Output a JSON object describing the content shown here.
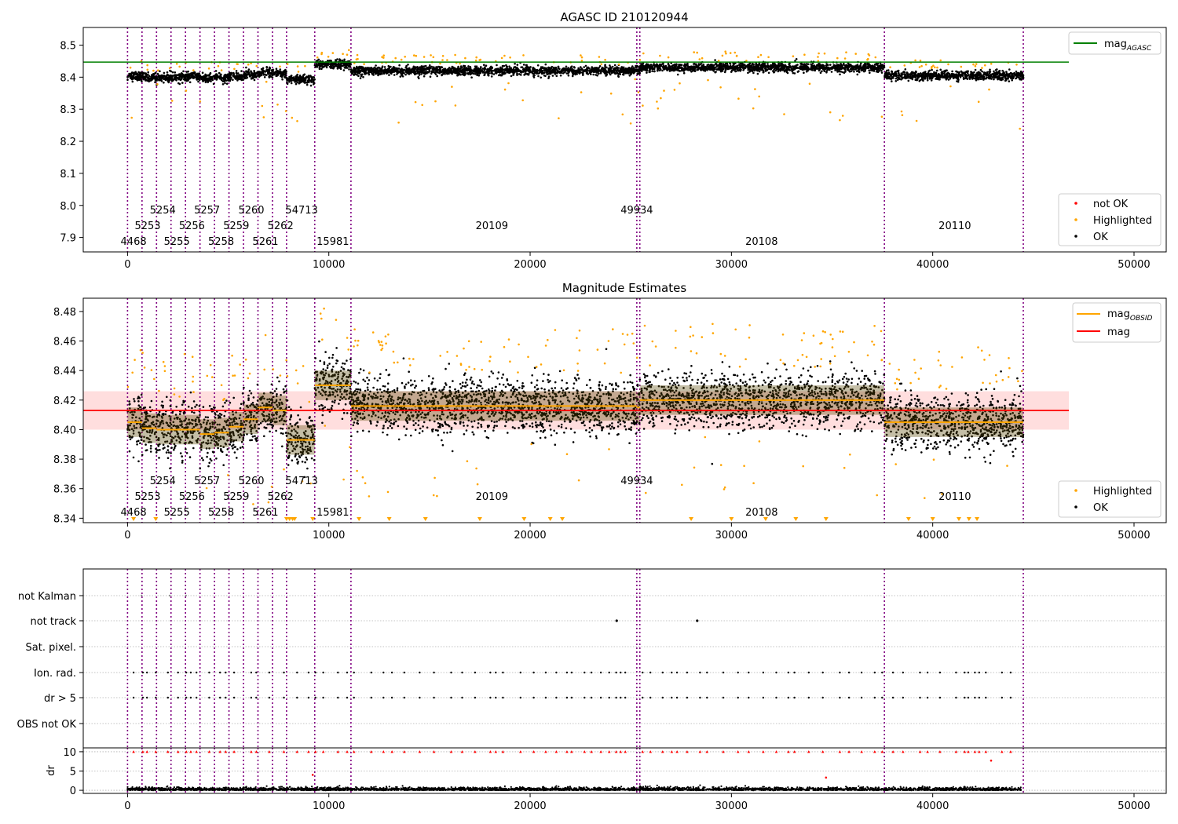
{
  "figure": {
    "colors": {
      "ok": "#000000",
      "highlighted": "#ffa500",
      "not_ok": "#ff0000",
      "obs_line": "#800080",
      "agasc_line": "#008000",
      "mag_line": "#ff0000",
      "mag_band": "#ffcccc",
      "obsid_line": "#ffa500"
    }
  },
  "chart_data": [
    {
      "type": "scatter",
      "title": "AGASC ID 210120944",
      "xlim": [
        -2200,
        51600
      ],
      "ylim": [
        7.855,
        8.555
      ],
      "x_ticks": [
        0,
        10000,
        20000,
        30000,
        40000,
        50000
      ],
      "y_ticks": [
        7.9,
        8.0,
        8.1,
        8.2,
        8.3,
        8.4,
        8.5
      ],
      "hline": {
        "name": "mag_AGASC",
        "value": 8.447,
        "color": "#008000"
      },
      "legend_top": {
        "placement": "top-right",
        "entries": [
          "mag_AGASC"
        ]
      },
      "legend_bottom": {
        "placement": "bottom-right",
        "entries": [
          "not OK",
          "Highlighted",
          "OK"
        ]
      },
      "grid": false
    },
    {
      "type": "scatter",
      "title": "Magnitude Estimates",
      "xlim": [
        -2200,
        51600
      ],
      "ylim": [
        8.337,
        8.489
      ],
      "x_ticks": [
        0,
        10000,
        20000,
        30000,
        40000,
        50000
      ],
      "y_ticks": [
        8.34,
        8.36,
        8.38,
        8.4,
        8.42,
        8.44,
        8.46,
        8.48
      ],
      "mag": {
        "value": 8.413,
        "band": [
          8.4,
          8.426
        ],
        "color": "#ff0000"
      },
      "obsid_mags": [
        {
          "x0": 0,
          "x1": 720,
          "mag": 8.405
        },
        {
          "x0": 720,
          "x1": 1440,
          "mag": 8.401
        },
        {
          "x0": 1440,
          "x1": 2160,
          "mag": 8.4
        },
        {
          "x0": 2160,
          "x1": 2880,
          "mag": 8.4
        },
        {
          "x0": 2880,
          "x1": 3600,
          "mag": 8.4
        },
        {
          "x0": 3600,
          "x1": 4320,
          "mag": 8.397
        },
        {
          "x0": 4320,
          "x1": 5040,
          "mag": 8.398
        },
        {
          "x0": 5040,
          "x1": 5760,
          "mag": 8.402
        },
        {
          "x0": 5760,
          "x1": 6480,
          "mag": 8.407
        },
        {
          "x0": 6480,
          "x1": 7200,
          "mag": 8.415
        },
        {
          "x0": 7200,
          "x1": 7900,
          "mag": 8.413
        },
        {
          "x0": 7900,
          "x1": 9300,
          "mag": 8.393
        },
        {
          "x0": 9300,
          "x1": 11100,
          "mag": 8.43
        },
        {
          "x0": 11100,
          "x1": 25300,
          "mag": 8.416
        },
        {
          "x0": 25300,
          "x1": 25450,
          "mag": 8.415
        },
        {
          "x0": 25450,
          "x1": 37600,
          "mag": 8.42
        },
        {
          "x0": 37600,
          "x1": 44500,
          "mag": 8.405
        }
      ],
      "legend_top": {
        "placement": "top-right",
        "entries": [
          "mag_OBSID",
          "mag"
        ]
      },
      "legend_bottom": {
        "placement": "bottom-right",
        "entries": [
          "Highlighted",
          "OK"
        ]
      },
      "grid": false
    },
    {
      "type": "scatter",
      "xlim": [
        -2200,
        51600
      ],
      "x_ticks": [
        0,
        10000,
        20000,
        30000,
        40000,
        50000
      ],
      "flag_categories": [
        "not Kalman",
        "not track",
        "Sat. pixel.",
        "Ion. rad.",
        "dr > 5",
        "OBS not OK"
      ],
      "dr_ylim": [
        -0.8,
        11
      ],
      "dr_ticks": [
        0,
        5,
        10
      ],
      "dr_label": "dr",
      "grid": true
    }
  ],
  "observations": {
    "boundaries": [
      0,
      720,
      1440,
      2160,
      2880,
      3600,
      4320,
      5040,
      5760,
      6480,
      7200,
      7900,
      9300,
      11100,
      25300,
      25450,
      37600,
      44500
    ],
    "labels": [
      {
        "text": "4468",
        "x": 300,
        "row": 0
      },
      {
        "text": "5253",
        "x": 1000,
        "row": 1
      },
      {
        "text": "5254",
        "x": 1750,
        "row": 2
      },
      {
        "text": "5255",
        "x": 2450,
        "row": 0
      },
      {
        "text": "5256",
        "x": 3200,
        "row": 1
      },
      {
        "text": "5257",
        "x": 3950,
        "row": 2
      },
      {
        "text": "5258",
        "x": 4650,
        "row": 0
      },
      {
        "text": "5259",
        "x": 5400,
        "row": 1
      },
      {
        "text": "5260",
        "x": 6150,
        "row": 2
      },
      {
        "text": "5261",
        "x": 6850,
        "row": 0
      },
      {
        "text": "5262",
        "x": 7600,
        "row": 1
      },
      {
        "text": "54713",
        "x": 8650,
        "row": 2
      },
      {
        "text": "15981",
        "x": 10200,
        "row": 0
      },
      {
        "text": "20109",
        "x": 18100,
        "row": 1
      },
      {
        "text": "49934",
        "x": 25300,
        "row": 2
      },
      {
        "text": "20108",
        "x": 31500,
        "row": 0
      },
      {
        "text": "20110",
        "x": 41100,
        "row": 1
      }
    ]
  },
  "legend": {
    "mag_agasc": "mag",
    "mag_agasc_sub": "AGASC",
    "mag_obsid": "mag",
    "mag_obsid_sub": "OBSID",
    "mag": "mag",
    "not_ok": "not OK",
    "highlighted": "Highlighted",
    "ok": "OK"
  }
}
